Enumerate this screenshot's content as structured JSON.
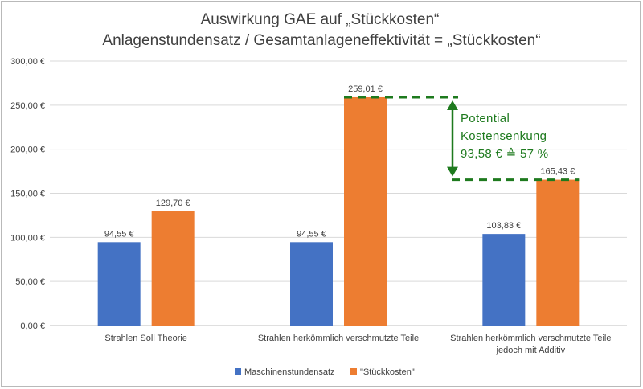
{
  "chart_data": {
    "type": "bar",
    "title_line1": "Auswirkung GAE auf „Stückkosten“",
    "title_line2": "Anlagenstundensatz / Gesamtanlageneffektivität = „Stückkosten“",
    "categories": [
      [
        "Strahlen Soll Theorie"
      ],
      [
        "Strahlen herkömmlich verschmutzte Teile"
      ],
      [
        "Strahlen herkömmlich verschmutzte Teile",
        "jedoch mit Additiv"
      ]
    ],
    "series": [
      {
        "name": "Maschinenstundensatz",
        "color": "#4472c4",
        "values": [
          94.55,
          94.55,
          103.83
        ],
        "labels": [
          "94,55 €",
          "94,55 €",
          "103,83 €"
        ]
      },
      {
        "name": "\"Stückkosten\"",
        "color": "#ed7d31",
        "values": [
          129.7,
          259.01,
          165.43
        ],
        "labels": [
          "129,70 €",
          "259,01 €",
          "165,43 €"
        ]
      }
    ],
    "ylim": [
      0,
      300
    ],
    "yticks": [
      0,
      50,
      100,
      150,
      200,
      250,
      300
    ],
    "ytick_labels": [
      "0,00 €",
      "50,00 €",
      "100,00 €",
      "150,00 €",
      "200,00 €",
      "250,00 €",
      "300,00 €"
    ],
    "grid": true,
    "legend_position": "bottom",
    "annotation": {
      "lines": [
        "Potential",
        "Kostensenkung",
        "93,58 € ≙ 57 %"
      ],
      "color": "#1e7a1e",
      "from_value": 259.01,
      "to_value": 165.43
    }
  }
}
